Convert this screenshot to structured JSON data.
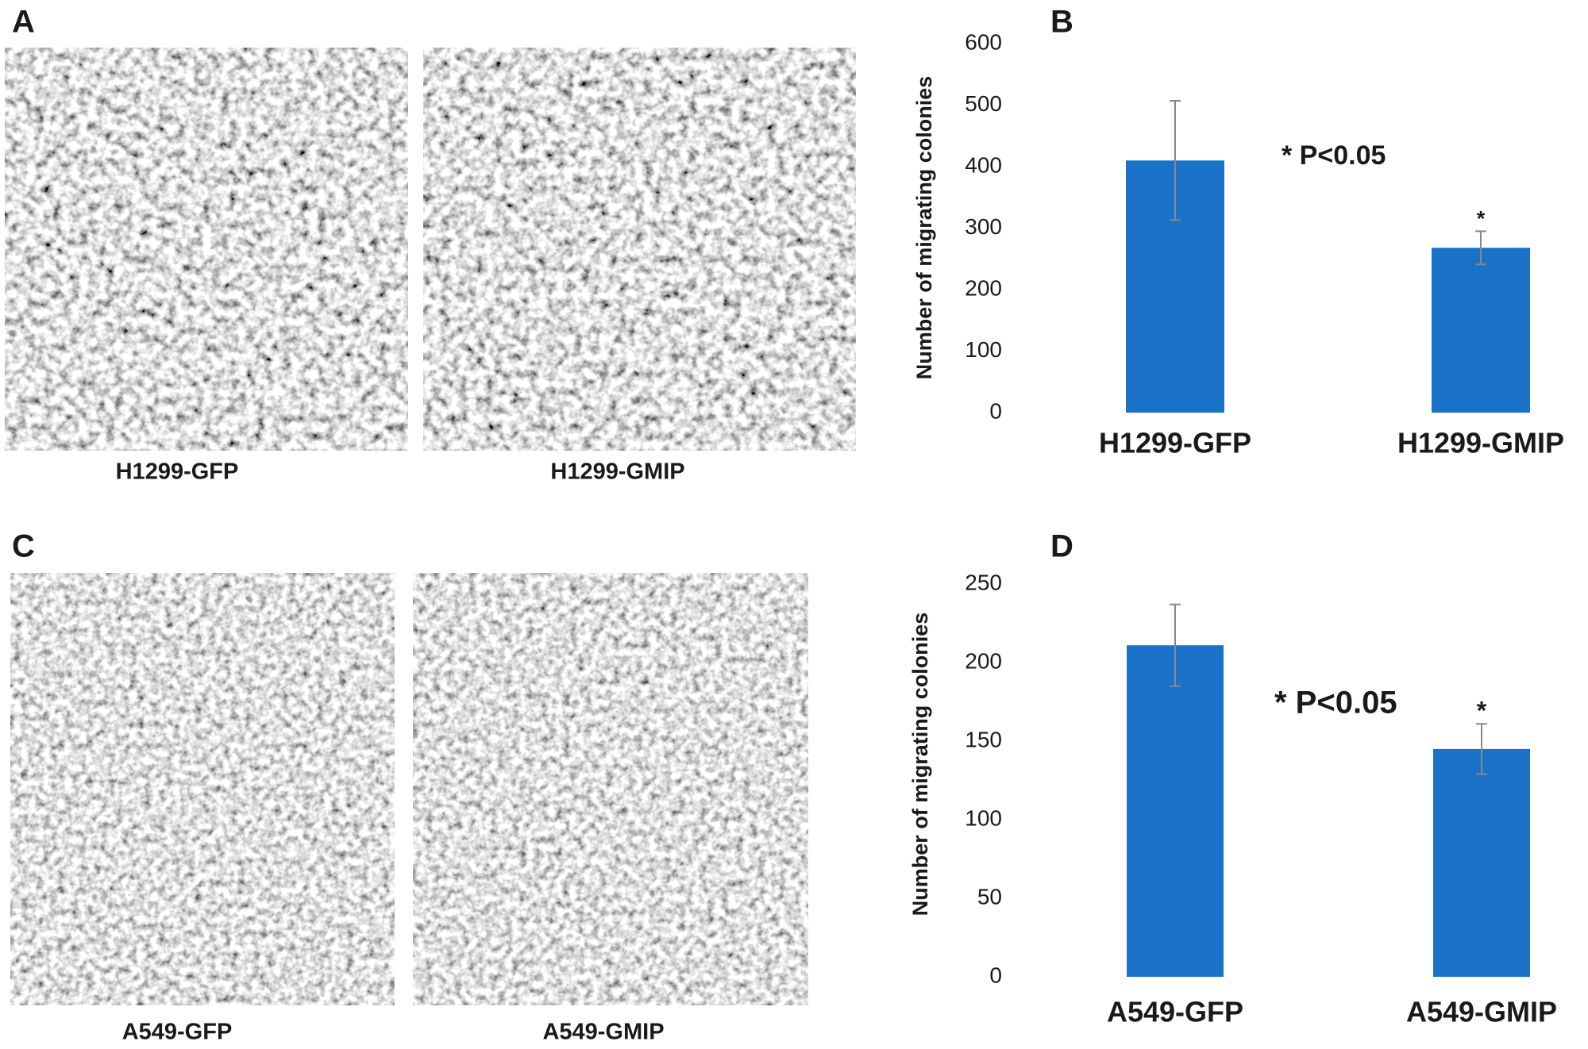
{
  "panels": {
    "labels": [
      "A",
      "B",
      "C",
      "D"
    ]
  },
  "images": {
    "captions": [
      "H1299-GFP",
      "H1299-GMIP",
      "A549-GFP",
      "A549-GMIP"
    ]
  },
  "chart_data": [
    {
      "type": "bar",
      "ylabel": "Number of migrating colonies",
      "categories": [
        "H1299-GFP",
        "H1299-GMIP"
      ],
      "values": [
        410,
        268
      ],
      "errors": [
        97,
        27
      ],
      "color": "#1a72c8",
      "ylim": [
        0,
        600
      ],
      "yticks": [
        0,
        100,
        200,
        300,
        400,
        500,
        600
      ],
      "annotation": "* P<0.05",
      "star_label": "*"
    },
    {
      "type": "bar",
      "ylabel": "Number of migrating colonies",
      "categories": [
        "A549-GFP",
        "A549-GMIP"
      ],
      "values": [
        211,
        145
      ],
      "errors": [
        26,
        16
      ],
      "color": "#1a72c8",
      "ylim": [
        0,
        250
      ],
      "yticks": [
        0,
        50,
        100,
        150,
        200,
        250
      ],
      "annotation": "* P<0.05",
      "star_label": "*"
    }
  ]
}
